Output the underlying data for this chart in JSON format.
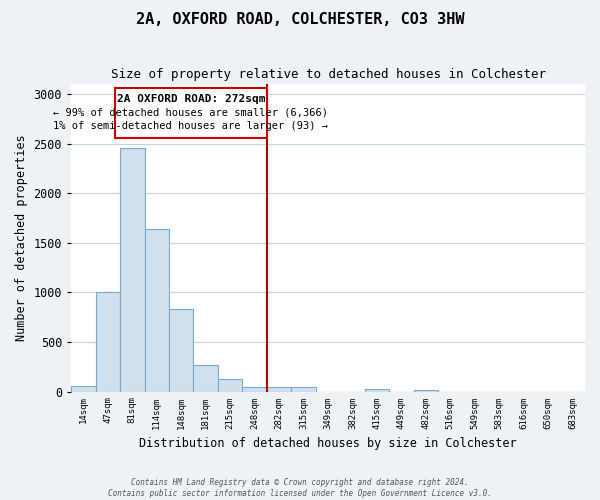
{
  "title": "2A, OXFORD ROAD, COLCHESTER, CO3 3HW",
  "subtitle": "Size of property relative to detached houses in Colchester",
  "xlabel": "Distribution of detached houses by size in Colchester",
  "ylabel": "Number of detached properties",
  "bar_labels": [
    "14sqm",
    "47sqm",
    "81sqm",
    "114sqm",
    "148sqm",
    "181sqm",
    "215sqm",
    "248sqm",
    "282sqm",
    "315sqm",
    "349sqm",
    "382sqm",
    "415sqm",
    "449sqm",
    "482sqm",
    "516sqm",
    "549sqm",
    "583sqm",
    "616sqm",
    "650sqm",
    "683sqm"
  ],
  "bar_values": [
    55,
    1000,
    2460,
    1640,
    830,
    270,
    130,
    50,
    50,
    50,
    0,
    0,
    25,
    0,
    20,
    0,
    0,
    0,
    0,
    0,
    0
  ],
  "bar_color": "#cfe0ee",
  "bar_edge_color": "#7aaac8",
  "ylim": [
    0,
    3100
  ],
  "yticks": [
    0,
    500,
    1000,
    1500,
    2000,
    2500,
    3000
  ],
  "marker_line_color": "#aa0000",
  "annotation_text_line1": "2A OXFORD ROAD: 272sqm",
  "annotation_text_line2": "← 99% of detached houses are smaller (6,366)",
  "annotation_text_line3": "1% of semi-detached houses are larger (93) →",
  "annotation_box_color": "#ffffff",
  "annotation_box_edge": "#cc0000",
  "footer_line1": "Contains HM Land Registry data © Crown copyright and database right 2024.",
  "footer_line2": "Contains public sector information licensed under the Open Government Licence v3.0.",
  "bg_color": "#eef2f7",
  "plot_bg_color": "#ffffff",
  "grid_color": "#c8d4e0"
}
